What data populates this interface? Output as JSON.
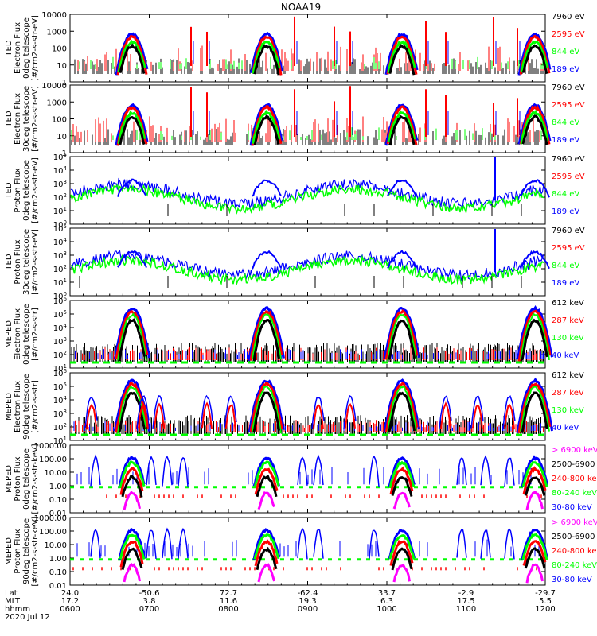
{
  "title": "NOAA19",
  "colors": {
    "black": "#000000",
    "red": "#ff0000",
    "green": "#00ff00",
    "blue": "#0000ff",
    "magenta": "#ff00ff"
  },
  "panels": [
    {
      "ylabel": [
        "TED",
        "Electron Flux",
        "0deg telescope",
        "[#/cm2-s-str-eV]"
      ],
      "ticks": [
        [
          "10000",
          0
        ],
        [
          "1000",
          0.25
        ],
        [
          "100",
          0.5
        ],
        [
          "10",
          0.75
        ],
        [
          "1",
          1
        ]
      ],
      "legend": [
        {
          "text": "7960 eV",
          "color": "#000000"
        },
        {
          "text": "2595 eV",
          "color": "#ff0000"
        },
        {
          "text": "844 eV",
          "color": "#00ff00"
        },
        {
          "text": "189 eV",
          "color": "#0000ff"
        }
      ]
    },
    {
      "ylabel": [
        "TED",
        "Electron Flux",
        "30deg telescope",
        "[#/cm2-s-str-eV]"
      ],
      "ticks": [
        [
          "10000",
          0
        ],
        [
          "1000",
          0.25
        ],
        [
          "100",
          0.5
        ],
        [
          "10",
          0.75
        ],
        [
          "1",
          1
        ]
      ],
      "legend": [
        {
          "text": "7960 eV",
          "color": "#000000"
        },
        {
          "text": "2595 eV",
          "color": "#ff0000"
        },
        {
          "text": "844 eV",
          "color": "#00ff00"
        },
        {
          "text": "189 eV",
          "color": "#0000ff"
        }
      ]
    },
    {
      "ylabel": [
        "TED",
        "Proton Flux",
        "0deg telescope",
        "[#/cm2-s-str-eV]"
      ],
      "ticks": [
        [
          "10^5",
          0
        ],
        [
          "10^4",
          0.2
        ],
        [
          "10^3",
          0.4
        ],
        [
          "10^2",
          0.6
        ],
        [
          "10^1",
          0.8
        ],
        [
          "10^0",
          1
        ]
      ],
      "legend": [
        {
          "text": "7960 eV",
          "color": "#000000"
        },
        {
          "text": "2595 eV",
          "color": "#ff0000"
        },
        {
          "text": "844 eV",
          "color": "#00ff00"
        },
        {
          "text": "189 eV",
          "color": "#0000ff"
        }
      ]
    },
    {
      "ylabel": [
        "TED",
        "Proton Flux",
        "30deg telescope",
        "[#/cm2-s-str-eV]"
      ],
      "ticks": [
        [
          "10^5",
          0
        ],
        [
          "10^4",
          0.2
        ],
        [
          "10^3",
          0.4
        ],
        [
          "10^2",
          0.6
        ],
        [
          "10^1",
          0.8
        ],
        [
          "10^0",
          1
        ]
      ],
      "legend": [
        {
          "text": "7960 eV",
          "color": "#000000"
        },
        {
          "text": "2595 eV",
          "color": "#ff0000"
        },
        {
          "text": "844 eV",
          "color": "#00ff00"
        },
        {
          "text": "189 eV",
          "color": "#0000ff"
        }
      ]
    },
    {
      "ylabel": [
        "MEPED",
        "Electron Flux",
        "0deg telescope",
        "[#/cm2-s-str]"
      ],
      "ticks": [
        [
          "10^6",
          0
        ],
        [
          "10^5",
          0.2
        ],
        [
          "10^4",
          0.4
        ],
        [
          "10^3",
          0.6
        ],
        [
          "10^2",
          0.8
        ],
        [
          "10^1",
          1
        ]
      ],
      "legend": [
        {
          "text": "612 keV",
          "color": "#000000"
        },
        {
          "text": "287 keV",
          "color": "#ff0000"
        },
        {
          "text": "130 keV",
          "color": "#00ff00"
        },
        {
          "text": "40 keV",
          "color": "#0000ff"
        }
      ]
    },
    {
      "ylabel": [
        "MEPED",
        "Electron Flux",
        "90deg telescope",
        "[#/cm2-s-str]"
      ],
      "ticks": [
        [
          "10^6",
          0
        ],
        [
          "10^5",
          0.2
        ],
        [
          "10^4",
          0.4
        ],
        [
          "10^3",
          0.6
        ],
        [
          "10^2",
          0.8
        ],
        [
          "10^1",
          1
        ]
      ],
      "legend": [
        {
          "text": "612 keV",
          "color": "#000000"
        },
        {
          "text": "287 keV",
          "color": "#ff0000"
        },
        {
          "text": "130 keV",
          "color": "#00ff00"
        },
        {
          "text": "40 keV",
          "color": "#0000ff"
        }
      ]
    },
    {
      "ylabel": [
        "MEPED",
        "Proton Flux",
        "0deg telescope",
        "[#/cm2-s-str-keV]"
      ],
      "ticks": [
        [
          "1000.00",
          0
        ],
        [
          "100.00",
          0.2
        ],
        [
          "10.00",
          0.4
        ],
        [
          "1.00",
          0.6
        ],
        [
          "0.10",
          0.8
        ],
        [
          "0.01",
          1
        ]
      ],
      "legend": [
        {
          "text": "> 6900 keV",
          "color": "#ff00ff"
        },
        {
          "text": "2500-6900",
          "color": "#000000"
        },
        {
          "text": "240-800 ke",
          "color": "#ff0000"
        },
        {
          "text": "80-240 keV",
          "color": "#00ff00"
        },
        {
          "text": "30-80 keV",
          "color": "#0000ff"
        }
      ]
    },
    {
      "ylabel": [
        "MEPED",
        "Proton Flux",
        "90deg telescope",
        "[#/cm2-s-str-keV]"
      ],
      "ticks": [
        [
          "1000.00",
          0
        ],
        [
          "100.00",
          0.2
        ],
        [
          "10.00",
          0.4
        ],
        [
          "1.00",
          0.6
        ],
        [
          "0.10",
          0.8
        ],
        [
          "0.01",
          1
        ]
      ],
      "legend": [
        {
          "text": "> 6900 keV",
          "color": "#ff00ff"
        },
        {
          "text": "2500-6900",
          "color": "#000000"
        },
        {
          "text": "240-800 ke",
          "color": "#ff0000"
        },
        {
          "text": "80-240 keV",
          "color": "#00ff00"
        },
        {
          "text": "30-80 keV",
          "color": "#0000ff"
        }
      ]
    }
  ],
  "xaxis": {
    "row_labels": [
      "Lat",
      "MLT",
      "hhmm",
      "2020 Jul 12"
    ],
    "ticks": [
      {
        "hhmm": "0600",
        "lat": "24.0",
        "mlt": "17.2"
      },
      {
        "hhmm": "0700",
        "lat": "-50.6",
        "mlt": "3.8"
      },
      {
        "hhmm": "0800",
        "lat": "72.7",
        "mlt": "11.6"
      },
      {
        "hhmm": "0900",
        "lat": "-62.4",
        "mlt": "19.3"
      },
      {
        "hhmm": "1000",
        "lat": "33.7",
        "mlt": "6.3"
      },
      {
        "hhmm": "1100",
        "lat": "-2.9",
        "mlt": "17.5"
      },
      {
        "hhmm": "1200",
        "lat": "-29.7",
        "mlt": "5.5"
      }
    ]
  },
  "chart_data": {
    "type": "line",
    "title": "NOAA19",
    "x_range": [
      "0600",
      "1200"
    ],
    "grid": false,
    "legend_position": "right",
    "pass_peaks_hhmm": [
      "0636",
      "0835",
      "1019",
      "1158"
    ]
  }
}
